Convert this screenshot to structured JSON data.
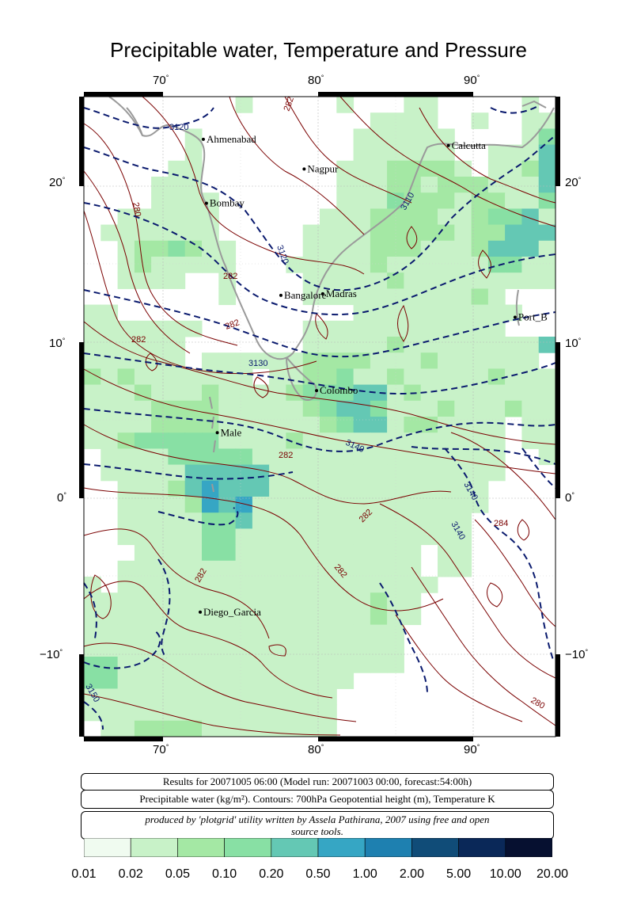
{
  "title": "Precipitable water, Temperature and Pressure",
  "lon_ticks": [
    "70",
    "80",
    "90"
  ],
  "lat_ticks": [
    "20",
    "10",
    "0",
    "−10"
  ],
  "degree_symbol": "°",
  "cities": [
    {
      "name": "Ahmenabad",
      "lon": 72.6,
      "lat": 23.0
    },
    {
      "name": "Calcutta",
      "lon": 88.4,
      "lat": 22.6
    },
    {
      "name": "Nagpur",
      "lon": 79.1,
      "lat": 21.1
    },
    {
      "name": "Bombay",
      "lon": 72.8,
      "lat": 18.9
    },
    {
      "name": "Bangalore",
      "lon": 77.6,
      "lat": 13.0
    },
    {
      "name": "Madras",
      "lon": 80.3,
      "lat": 13.1
    },
    {
      "name": "Port_B",
      "lon": 92.7,
      "lat": 11.6
    },
    {
      "name": "Colombo",
      "lon": 79.9,
      "lat": 6.9
    },
    {
      "name": "Male",
      "lon": 73.5,
      "lat": 4.2
    },
    {
      "name": "Diego_Garcia",
      "lon": 72.4,
      "lat": -7.3
    }
  ],
  "contour_labels": {
    "temperature": [
      "282",
      "280",
      "282",
      "282",
      "282",
      "282",
      "282",
      "282",
      "282",
      "284",
      "280"
    ],
    "height": [
      "3120",
      "3110",
      "3120",
      "3130",
      "3140",
      "3140",
      "3140",
      "3150"
    ]
  },
  "info": {
    "line1": "Results for 20071005 06:00 (Model run: 20071003 00:00, forecast:54:00h)",
    "line2": "Precipitable water (kg/m²).  Contours: 700hPa Geopotential height (m), Temperature K",
    "line3a": "produced by 'plotgrid' utility written by Assela Pathirana, 2007 using free and open",
    "line3b": "source tools."
  },
  "legend": {
    "colors": [
      "#f0fbf0",
      "#c8f2c8",
      "#a4e8a4",
      "#88e0a4",
      "#64c8b4",
      "#36a6c4",
      "#1e80b0",
      "#104c78",
      "#0a2858",
      "#061030",
      "#000814"
    ],
    "ticks": [
      "0.01",
      "0.02",
      "0.05",
      "0.10",
      "0.20",
      "0.50",
      "1.00",
      "2.00",
      "5.00",
      "10.00",
      "20.00"
    ]
  }
}
